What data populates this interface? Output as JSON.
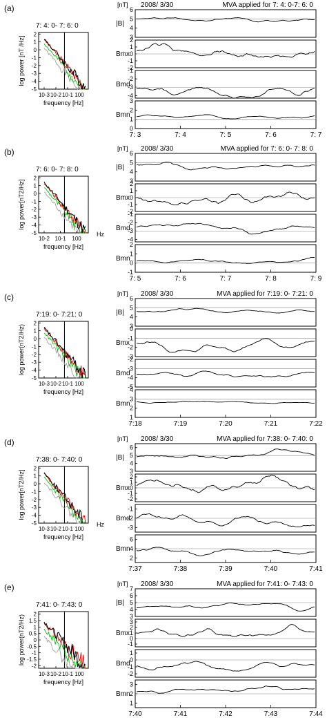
{
  "figure": {
    "date_label": "2008/ 3/30",
    "unit_label": "[nT]",
    "frequency_label": "frequency [Hz]",
    "hz_label": "Hz",
    "component_labels": [
      "|B|",
      "Bmx",
      "Bmd",
      "Bmn"
    ],
    "spectrum_colors": {
      "total": "#000000",
      "red": "#e00000",
      "green": "#00c000",
      "gray": "#a0a0a0"
    },
    "trace_color": "#000000"
  },
  "chart_data": [
    {
      "panel": "(a)",
      "type": "line",
      "spectrum": {
        "interval_label": "7: 4: 0- 7: 6: 0",
        "ylabel": "log power [nT /Hz]",
        "xlabel": "frequency [Hz]",
        "x_tick_labels": [
          "10-3",
          "10-2",
          "10-1",
          "100"
        ],
        "y_tick_labels": [
          "2",
          "1",
          "0",
          "-1",
          "-2",
          "-3",
          "-4",
          "-5"
        ],
        "ylim": [
          -5,
          2.2
        ],
        "marker_frequency_hz": 0.05
      },
      "time_series": {
        "title": "MVA applied for 7: 4: 0-7: 6: 0",
        "x_tick_labels": [
          "7: 3",
          "7: 4",
          "7: 5",
          "7: 6",
          "7: 7"
        ],
        "panels": [
          {
            "label": "|B|",
            "y_tick_labels": [
              "6",
              "5",
              "4",
              "3"
            ],
            "ylim": [
              3,
              6
            ],
            "ref": 5,
            "base": 5.0,
            "noise": 0.25,
            "seed": 11
          },
          {
            "label": "Bmx",
            "y_tick_labels": [
              "2",
              "1",
              "0",
              "-1",
              "-2"
            ],
            "ylim": [
              -2,
              2
            ],
            "ref": 0,
            "base": 0.5,
            "noise": 0.9,
            "seed": 12
          },
          {
            "label": "Bmd",
            "y_tick_labels": [
              "-1",
              "-2",
              "-3",
              "-4"
            ],
            "ylim": [
              -4.3,
              -1
            ],
            "ref": -3,
            "base": -3.2,
            "noise": 0.6,
            "seed": 13
          },
          {
            "label": "Bmn",
            "y_tick_labels": [
              "3",
              "2",
              "1",
              "0"
            ],
            "ylim": [
              0,
              3
            ],
            "ref": 1,
            "base": 1.3,
            "noise": 0.2,
            "seed": 14
          }
        ]
      }
    },
    {
      "panel": "(b)",
      "type": "line",
      "spectrum": {
        "interval_label": "7: 6: 0- 7: 8: 0",
        "ylabel": "log power[nT2/Hz]",
        "xlabel": "frequency [Hz]",
        "x_tick_labels": [
          "10-2",
          "10-1",
          "100"
        ],
        "y_tick_labels": [
          "2",
          "1",
          "0",
          "-1",
          "-2",
          "-3",
          "-4",
          "-5"
        ],
        "ylim": [
          -5,
          2.2
        ],
        "marker_frequency_hz": 0.07
      },
      "time_series": {
        "title": "MVA applied for 7: 6: 0- 7: 8: 0",
        "x_tick_labels": [
          "7: 5",
          "7: 6",
          "7: 7",
          "7: 8",
          "7: 9"
        ],
        "panels": [
          {
            "label": "|B|",
            "y_tick_labels": [
              "6",
              "5",
              "4",
              "3"
            ],
            "ylim": [
              3,
              6
            ],
            "ref": 5,
            "base": 4.8,
            "noise": 0.3,
            "seed": 21
          },
          {
            "label": "Bmx",
            "y_tick_labels": [
              "2",
              "1",
              "0",
              "-1",
              "-2"
            ],
            "ylim": [
              -2,
              2
            ],
            "ref": 0,
            "base": 0.2,
            "noise": 1.0,
            "seed": 22
          },
          {
            "label": "Bmd",
            "y_tick_labels": [
              "-1",
              "-2",
              "-3",
              "-4"
            ],
            "ylim": [
              -4.3,
              -1
            ],
            "ref": -3,
            "base": -2.6,
            "noise": 0.45,
            "seed": 23
          },
          {
            "label": "Bmn",
            "y_tick_labels": [
              "2",
              "1",
              "0",
              "-1"
            ],
            "ylim": [
              -1,
              2
            ],
            "ref": 0,
            "base": 0.2,
            "noise": 0.25,
            "seed": 24
          }
        ]
      }
    },
    {
      "panel": "(c)",
      "type": "line",
      "spectrum": {
        "interval_label": "7:19: 0- 7:21: 0",
        "ylabel": "log power(nT2/Hz)",
        "xlabel": "frequency [Hz]",
        "x_tick_labels": [
          "10-3",
          "10-2",
          "10-1",
          "100"
        ],
        "y_tick_labels": [
          "2",
          "1",
          "0",
          "-1",
          "-2",
          "-3",
          "-4",
          "-5"
        ],
        "ylim": [
          -5,
          2.2
        ],
        "marker_frequency_hz": 0.05
      },
      "time_series": {
        "title": "MVA applied for 7:19: 0- 7:21: 0",
        "x_tick_labels": [
          "7:18",
          "7:19",
          "7:20",
          "7:21",
          "7:22"
        ],
        "panels": [
          {
            "label": "|B|",
            "y_tick_labels": [
              "6",
              "5",
              "4",
              "3"
            ],
            "ylim": [
              3,
              6
            ],
            "ref": 5,
            "base": 4.6,
            "noise": 0.2,
            "seed": 31
          },
          {
            "label": "Bmx",
            "y_tick_labels": [
              "0",
              "-1",
              "-2",
              "-3"
            ],
            "ylim": [
              -3,
              0
            ],
            "ref": -1,
            "base": -1.5,
            "noise": 0.5,
            "seed": 32
          },
          {
            "label": "Bmd",
            "y_tick_labels": [
              "-2",
              "-3",
              "-4",
              "-5"
            ],
            "ylim": [
              -5,
              -2
            ],
            "ref": -3,
            "base": -3.6,
            "noise": 0.35,
            "seed": 33
          },
          {
            "label": "Bmn",
            "y_tick_labels": [
              "4",
              "3",
              "2",
              "1"
            ],
            "ylim": [
              1,
              4
            ],
            "ref": 3,
            "base": 2.7,
            "noise": 0.1,
            "seed": 34
          }
        ]
      }
    },
    {
      "panel": "(d)",
      "type": "line",
      "spectrum": {
        "interval_label": "7:38: 0- 7:40: 0",
        "ylabel": "log power[nT2/Hz]",
        "xlabel": "frequency [Hz]",
        "x_tick_labels": [
          "10-3",
          "10-2",
          "10-1",
          "100"
        ],
        "y_tick_labels": [
          "2",
          "1",
          "0",
          "-1",
          "-2",
          "-3",
          "-4",
          "-5"
        ],
        "ylim": [
          -5,
          2.2
        ],
        "marker_frequency_hz": 0.05
      },
      "time_series": {
        "title": "MVA applied for 7:38: 0- 7:40: 0",
        "x_tick_labels": [
          "7:37",
          "7:38",
          "7:39",
          "7:40",
          "7:41"
        ],
        "panels": [
          {
            "label": "|B|",
            "y_tick_labels": [
              "6",
              "5",
              "4",
              "3"
            ],
            "ylim": [
              3,
              6.5
            ],
            "ref": 5,
            "base": 4.8,
            "noise": 0.45,
            "seed": 41
          },
          {
            "label": "Bmx",
            "y_tick_labels": [
              "2",
              "1",
              "0",
              "-1",
              "-2"
            ],
            "ylim": [
              -2.5,
              2.5
            ],
            "ref": 0,
            "base": 0.2,
            "noise": 1.4,
            "seed": 42
          },
          {
            "label": "Bmd",
            "y_tick_labels": [
              "-1",
              "-2",
              "-3"
            ],
            "ylim": [
              -3.5,
              -0.5
            ],
            "ref": -2,
            "base": -2.0,
            "noise": 0.55,
            "seed": 43
          },
          {
            "label": "Bmn",
            "y_tick_labels": [
              "6",
              "4",
              "2"
            ],
            "ylim": [
              1,
              7
            ],
            "ref": 4,
            "base": 3.6,
            "noise": 0.7,
            "seed": 44
          }
        ]
      }
    },
    {
      "panel": "(e)",
      "type": "line",
      "spectrum": {
        "interval_label": "7:41: 0- 7:43: 0",
        "ylabel": "log power(nT2/Hz)",
        "xlabel": "frequency [Hz]",
        "x_tick_labels": [
          "10-3",
          "10-2",
          "10-1",
          "100"
        ],
        "y_tick_labels": [
          "2",
          "1.5",
          "1",
          "0.5",
          "0",
          "-0.5",
          "-1",
          "-1.5",
          "-2"
        ],
        "ylim": [
          -2.2,
          2.2
        ],
        "marker_frequency_hz": 0.05
      },
      "time_series": {
        "title": "MVA applied for 7:41: 0- 7:43: 0",
        "x_tick_labels": [
          "7:40",
          "7:41",
          "7:42",
          "7:43",
          "7:44"
        ],
        "panels": [
          {
            "label": "|B|",
            "y_tick_labels": [
              "7",
              "6",
              "5",
              "4",
              "3"
            ],
            "ylim": [
              3,
              7
            ],
            "ref": 5,
            "base": 4.3,
            "noise": 0.35,
            "seed": 51
          },
          {
            "label": "Bmx",
            "y_tick_labels": [
              "3",
              "2",
              "1",
              "0",
              "-1"
            ],
            "ylim": [
              -1.5,
              3.5
            ],
            "ref": 0,
            "base": 1.0,
            "noise": 0.9,
            "seed": 52
          },
          {
            "label": "Bmd",
            "y_tick_labels": [
              "1",
              "0",
              "-1",
              "-2"
            ],
            "ylim": [
              -2.5,
              1.5
            ],
            "ref": 0,
            "base": -0.8,
            "noise": 0.55,
            "seed": 53
          },
          {
            "label": "Bmn",
            "y_tick_labels": [
              "3",
              "2",
              "1"
            ],
            "ylim": [
              0.5,
              3.5
            ],
            "ref": 2,
            "base": 2.2,
            "noise": 0.3,
            "seed": 54
          }
        ]
      }
    }
  ]
}
